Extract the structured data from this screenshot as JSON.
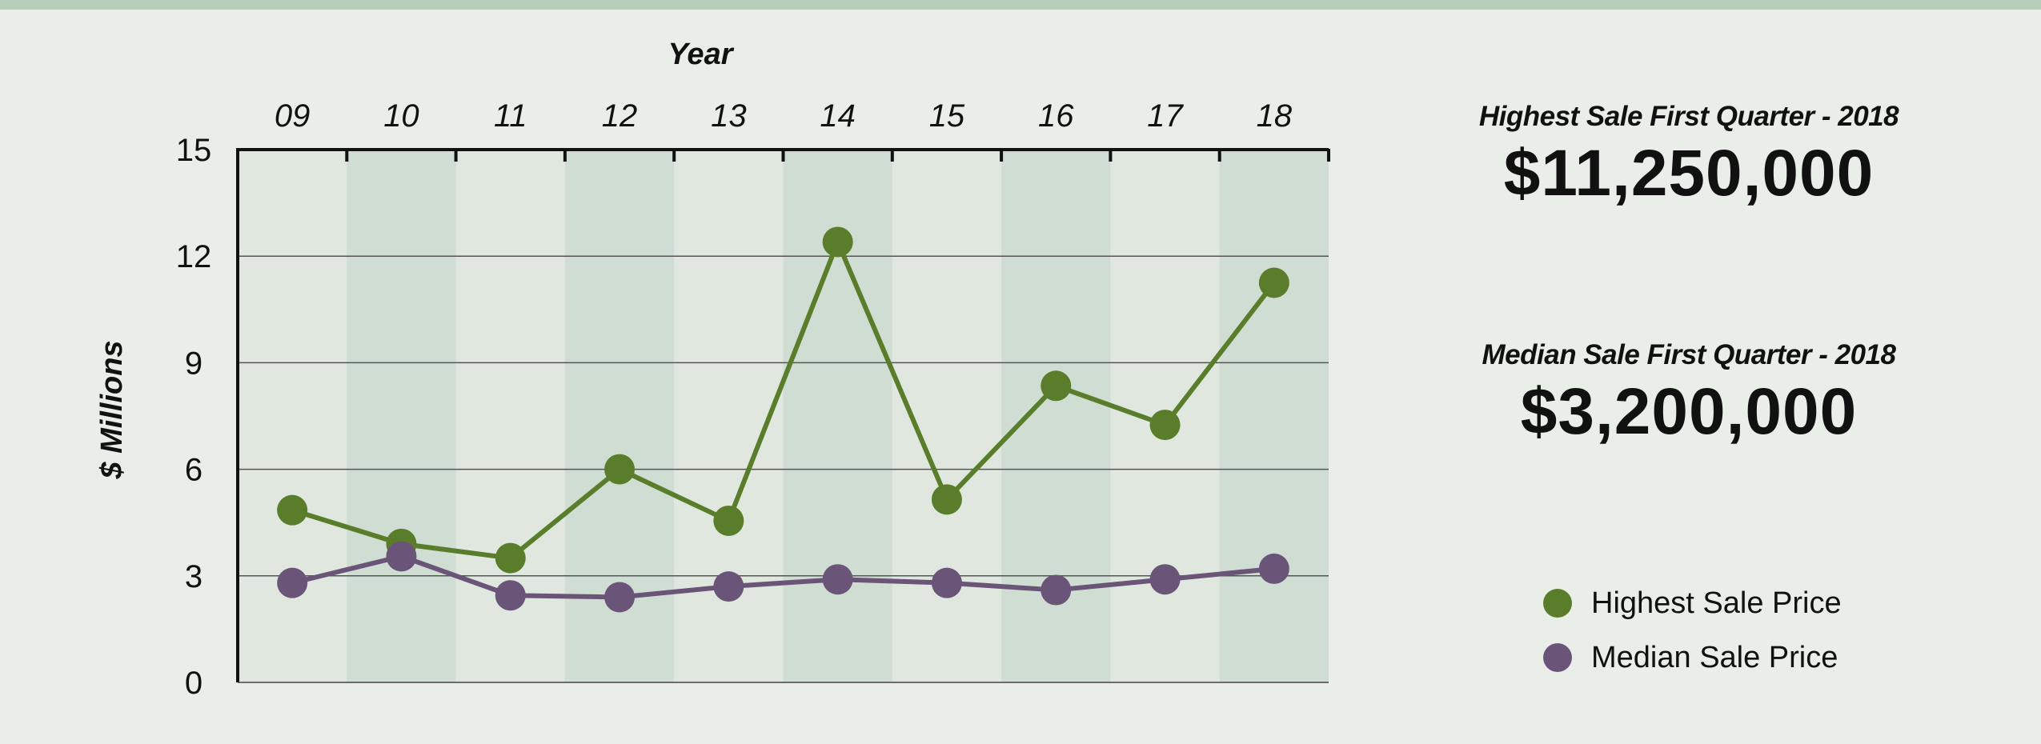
{
  "colors": {
    "background": "#e9eee9",
    "band_light": "#dfe7df",
    "band_dark": "#d0ddd2",
    "highest": "#5a7d2b",
    "median": "#6a5578",
    "top_bar": "#b7ceba"
  },
  "chart_data": {
    "type": "line",
    "xlabel": "Year",
    "ylabel": "$ Millions",
    "categories": [
      "09",
      "10",
      "11",
      "12",
      "13",
      "14",
      "15",
      "16",
      "17",
      "18"
    ],
    "ylim": [
      0,
      15
    ],
    "yticks": [
      0,
      3,
      6,
      9,
      12,
      15
    ],
    "x_axis_position": "top",
    "grid": true,
    "legend_position": "bottom-right",
    "series": [
      {
        "name": "Highest Sale Price",
        "color": "#5a7d2b",
        "values": [
          4.85,
          3.9,
          3.5,
          6.0,
          4.55,
          12.4,
          5.15,
          8.35,
          7.25,
          11.25
        ]
      },
      {
        "name": "Median Sale Price",
        "color": "#6a5578",
        "values": [
          2.8,
          3.55,
          2.45,
          2.4,
          2.7,
          2.9,
          2.8,
          2.6,
          2.9,
          3.2
        ]
      }
    ]
  },
  "stats": {
    "highest_label": "Highest Sale First Quarter - 2018",
    "highest_value": "$11,250,000",
    "median_label": "Median Sale First Quarter - 2018",
    "median_value": "$3,200,000"
  },
  "legend": {
    "highest_label": "Highest Sale Price",
    "median_label": "Median Sale Price"
  }
}
